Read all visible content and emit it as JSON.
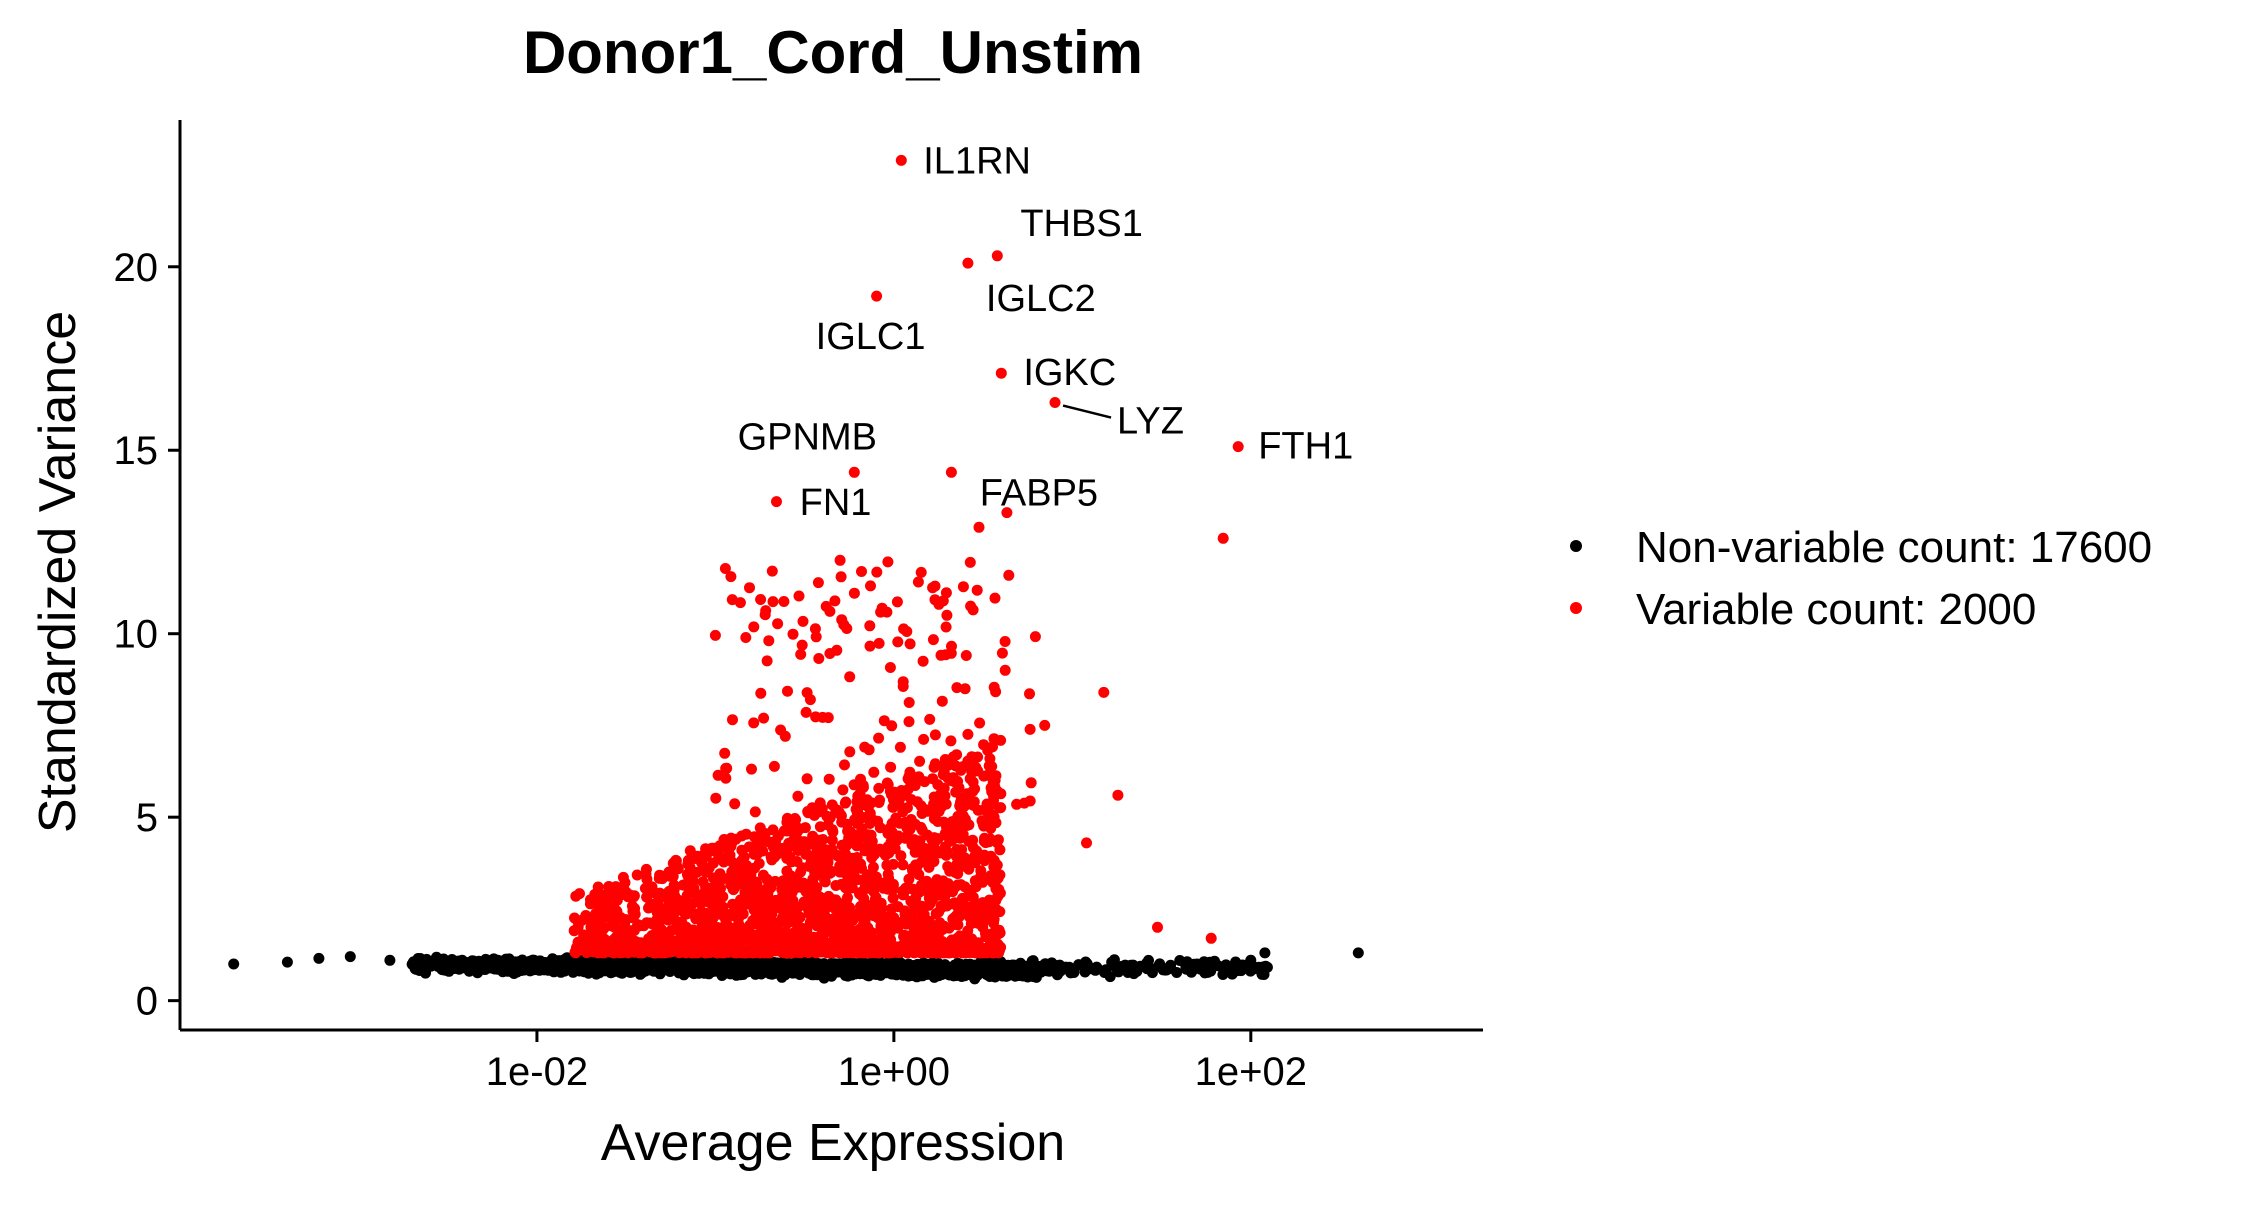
{
  "chart_data": {
    "type": "scatter",
    "title": "Donor1_Cord_Unstim",
    "xlabel": "Average Expression",
    "ylabel": "Standardized Variance",
    "x_scale": "log10",
    "xlim": [
      0.0001,
      2000
    ],
    "ylim": [
      -0.8,
      24
    ],
    "x_ticks": [
      {
        "value": 0.01,
        "label": "1e-02"
      },
      {
        "value": 1,
        "label": "1e+00"
      },
      {
        "value": 100,
        "label": "1e+02"
      }
    ],
    "y_ticks": [
      {
        "value": 0,
        "label": "0"
      },
      {
        "value": 5,
        "label": "5"
      },
      {
        "value": 10,
        "label": "10"
      },
      {
        "value": 15,
        "label": "15"
      },
      {
        "value": 20,
        "label": "20"
      }
    ],
    "grid": false,
    "legend_position": "right",
    "series": [
      {
        "name": "Non-variable count: 17600",
        "color": "#000000",
        "representative_points": [
          [
            0.0002,
            1.0
          ],
          [
            0.0004,
            1.05
          ],
          [
            0.0006,
            1.15
          ],
          [
            0.0009,
            1.2
          ],
          [
            0.0015,
            1.1
          ],
          [
            0.003,
            1.05
          ],
          [
            0.01,
            0.95
          ],
          [
            0.05,
            0.9
          ],
          [
            0.3,
            0.85
          ],
          [
            1.0,
            0.8
          ],
          [
            3.0,
            0.8
          ],
          [
            6.0,
            0.9
          ],
          [
            10.0,
            0.8
          ],
          [
            20.0,
            0.9
          ],
          [
            50.0,
            1.0
          ],
          [
            100.0,
            1.1
          ],
          [
            120.0,
            1.3
          ],
          [
            400.0,
            1.3
          ]
        ]
      },
      {
        "name": "Variable count: 2000",
        "color": "#ff0000",
        "representative_points": [
          [
            1.1,
            22.9
          ],
          [
            3.8,
            20.3
          ],
          [
            2.6,
            20.1
          ],
          [
            0.8,
            19.2
          ],
          [
            4.0,
            17.1
          ],
          [
            8.0,
            16.3
          ],
          [
            85.0,
            15.1
          ],
          [
            0.6,
            14.4
          ],
          [
            2.1,
            14.4
          ],
          [
            0.22,
            13.6
          ],
          [
            4.3,
            13.3
          ],
          [
            3.0,
            12.9
          ],
          [
            0.5,
            12.0
          ],
          [
            70.0,
            12.6
          ],
          [
            15.0,
            8.4
          ],
          [
            7.0,
            7.5
          ],
          [
            18.0,
            5.6
          ],
          [
            12.0,
            4.3
          ],
          [
            30.0,
            2.0
          ],
          [
            60.0,
            1.7
          ]
        ]
      }
    ],
    "labeled_genes": [
      {
        "name": "IL1RN",
        "x": 1.1,
        "y": 22.9
      },
      {
        "name": "THBS1",
        "x": 3.8,
        "y": 20.3
      },
      {
        "name": "IGLC2",
        "x": 2.6,
        "y": 20.1
      },
      {
        "name": "IGLC1",
        "x": 0.8,
        "y": 19.2
      },
      {
        "name": "IGKC",
        "x": 4.0,
        "y": 17.1
      },
      {
        "name": "LYZ",
        "x": 8.0,
        "y": 16.3
      },
      {
        "name": "FTH1",
        "x": 85.0,
        "y": 15.1
      },
      {
        "name": "GPNMB",
        "x": 0.6,
        "y": 14.4
      },
      {
        "name": "FN1",
        "x": 0.55,
        "y": 13.1
      },
      {
        "name": "FABP5",
        "x": 4.3,
        "y": 13.3
      }
    ]
  }
}
